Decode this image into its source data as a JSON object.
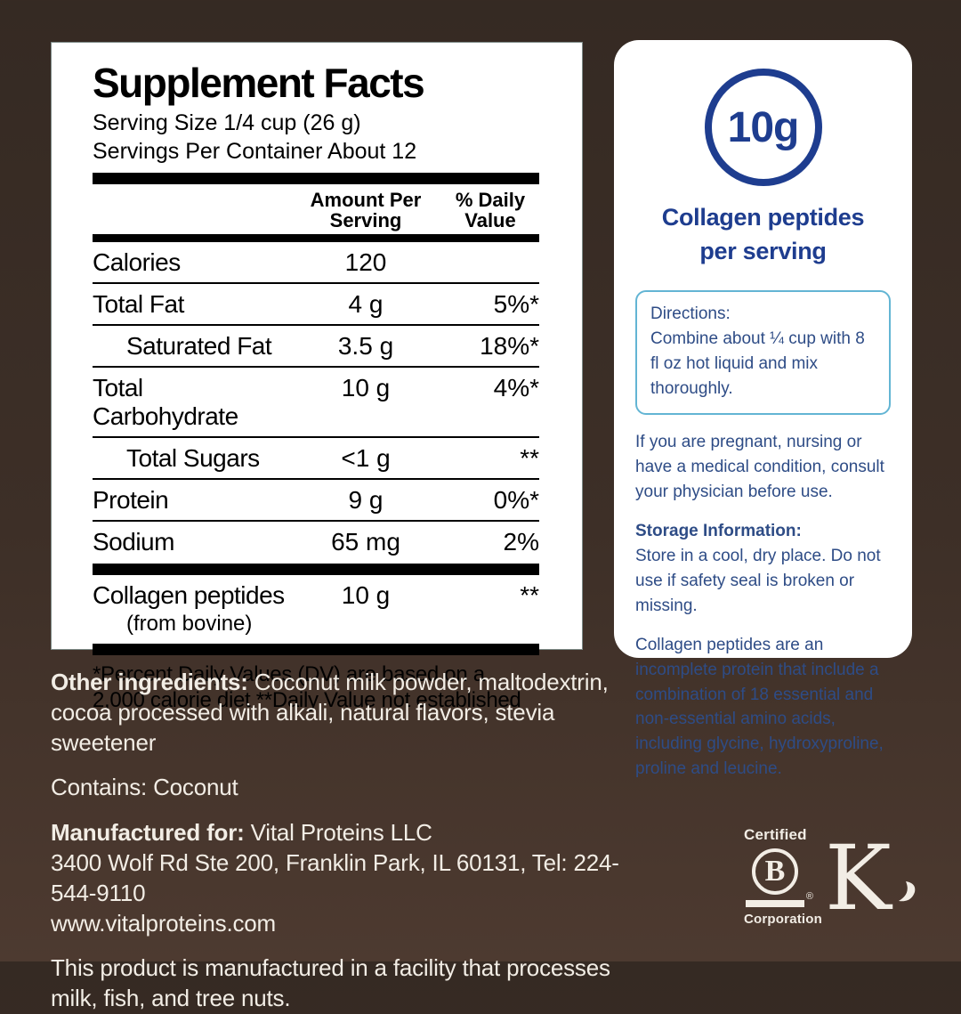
{
  "colors": {
    "background_top": "#352a23",
    "background_bottom": "#4d3a30",
    "panel_white": "#ffffff",
    "navy_heading": "#1e3d8f",
    "navy_body": "#2e4c86",
    "directions_border": "#63b5d4",
    "footer_text": "#f2ede5",
    "black": "#000000"
  },
  "supplement_facts": {
    "title": "Supplement Facts",
    "serving_size": "Serving Size 1/4 cup (26 g)",
    "servings_per_container": "Servings Per Container About 12",
    "header": {
      "amount_line1": "Amount Per",
      "amount_line2": "Serving",
      "dv_line1": "% Daily",
      "dv_line2": "Value"
    },
    "rows": [
      {
        "label": "Calories",
        "amount": "120",
        "dv": "",
        "indent": false,
        "sep": "thin"
      },
      {
        "label": "Total Fat",
        "amount": "4 g",
        "dv": "5%*",
        "indent": false,
        "sep": "thin"
      },
      {
        "label": "Saturated Fat",
        "amount": "3.5 g",
        "dv": "18%*",
        "indent": true,
        "sep": "thin"
      },
      {
        "label": "Total Carbohydrate",
        "amount": "10 g",
        "dv": "4%*",
        "indent": false,
        "sep": "thin"
      },
      {
        "label": "Total Sugars",
        "amount": "<1 g",
        "dv": "**",
        "indent": true,
        "sep": "thin"
      },
      {
        "label": "Protein",
        "amount": "9 g",
        "dv": "0%*",
        "indent": false,
        "sep": "thin"
      },
      {
        "label": "Sodium",
        "amount": "65 mg",
        "dv": "2%",
        "indent": false,
        "sep": "thick"
      },
      {
        "label": "Collagen peptides",
        "sublabel": "(from bovine)",
        "amount": "10 g",
        "dv": "**",
        "indent": false,
        "sep": "thick"
      }
    ],
    "footnote_line1": "*Percent Daily Values (DV) are based on a",
    "footnote_line2": "2,000 calorie diet **Daily Value not established"
  },
  "info_card": {
    "badge_value": "10g",
    "badge_label_line1": "Collagen peptides",
    "badge_label_line2": "per serving",
    "directions_title": "Directions:",
    "directions_text": "Combine about ¼ cup with 8 fl oz hot liquid and mix thoroughly.",
    "pregnancy_note": "If you are pregnant, nursing or have a medical condition, consult your physician before use.",
    "storage_title": "Storage Information:",
    "storage_text": "Store in a cool, dry place. Do not use if safety seal is broken or missing.",
    "collagen_note": "Collagen peptides are an incomplete protein that include a combination of 18 essential and non-essential amino acids, including glycine, hydroxyproline, proline and leucine."
  },
  "footer": {
    "other_ingredients_label": "Other ingredients:",
    "other_ingredients_text": " Coconut milk powder, maltodextrin, cocoa processed with alkali, natural flavors, stevia sweetener",
    "contains": "Contains: Coconut",
    "manufactured_label": "Manufactured for:",
    "manufactured_text": " Vital Proteins LLC",
    "address": "3400 Wolf Rd Ste 200, Franklin Park, IL 60131, Tel: 224-544-9110",
    "website": "www.vitalproteins.com",
    "allergen_note": "This product is manufactured in a facility that processes milk, fish, and tree nuts."
  },
  "logos": {
    "bcorp_top": "Certified",
    "bcorp_letter": "B",
    "bcorp_reg": "®",
    "bcorp_bottom": "Corporation",
    "kosher_letter": "K"
  }
}
